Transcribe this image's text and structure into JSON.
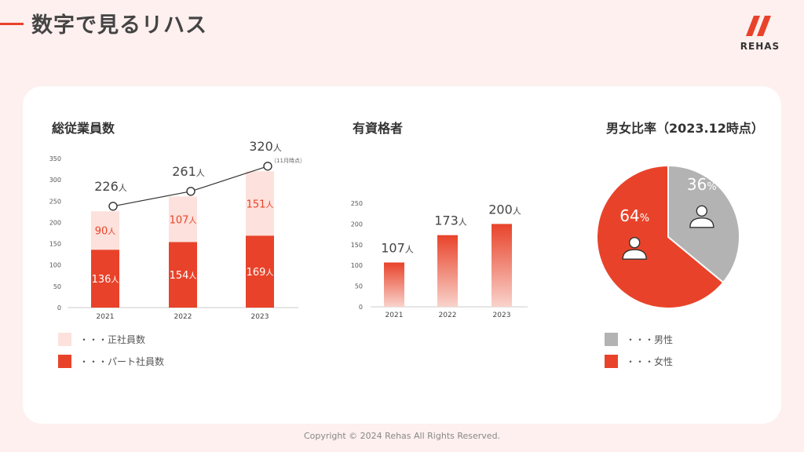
{
  "page": {
    "title": "数字で見るリハス",
    "logo_text": "REHAS",
    "copyright": "Copyright © 2024 Rehas All Rights Reserved.",
    "colors": {
      "accent": "#e8432a",
      "light": "#fde1dc",
      "gray": "#b3b3b3",
      "background": "#fdf0ef"
    }
  },
  "chart_data": [
    {
      "type": "bar",
      "stacked": true,
      "title": "総従業員数",
      "categories": [
        "2021",
        "2022",
        "2023"
      ],
      "ylim": [
        0,
        350
      ],
      "yticks": [
        "0",
        "50",
        "100",
        "150",
        "200",
        "250",
        "300",
        "350"
      ],
      "series": [
        {
          "name": "パート社員数",
          "values": [
            136,
            154,
            169
          ],
          "value_labels": [
            "136人",
            "154人",
            "169人"
          ],
          "color": "#e8432a"
        },
        {
          "name": "正社員数",
          "values": [
            90,
            107,
            151
          ],
          "value_labels": [
            "90人",
            "107人",
            "151人"
          ],
          "color": "#fde1dc"
        }
      ],
      "totals": [
        226,
        261,
        320
      ],
      "total_labels": [
        "226",
        "261",
        "320"
      ],
      "total_unit": "人",
      "annotation": "（11月時点）",
      "legend": [
        {
          "label": "・・・正社員数",
          "color": "#fde1dc"
        },
        {
          "label": "・・・パート社員数",
          "color": "#e8432a"
        }
      ]
    },
    {
      "type": "bar",
      "title": "有資格者",
      "categories": [
        "2021",
        "2022",
        "2023"
      ],
      "ylim": [
        0,
        250
      ],
      "yticks": [
        "0",
        "50",
        "100",
        "150",
        "200",
        "250"
      ],
      "values": [
        107,
        173,
        200
      ],
      "value_labels": [
        "107",
        "173",
        "200"
      ],
      "unit": "人",
      "color": "#e8432a"
    },
    {
      "type": "pie",
      "title": "男女比率（2023.12時点）",
      "slices": [
        {
          "name": "男性",
          "value": 36,
          "label": "36",
          "color": "#b3b3b3",
          "icon": "male-person-icon"
        },
        {
          "name": "女性",
          "value": 64,
          "label": "64",
          "color": "#e8432a",
          "icon": "female-person-icon"
        }
      ],
      "unit": "%",
      "legend": [
        {
          "label": "・・・男性",
          "color": "#b3b3b3"
        },
        {
          "label": "・・・女性",
          "color": "#e8432a"
        }
      ]
    }
  ]
}
